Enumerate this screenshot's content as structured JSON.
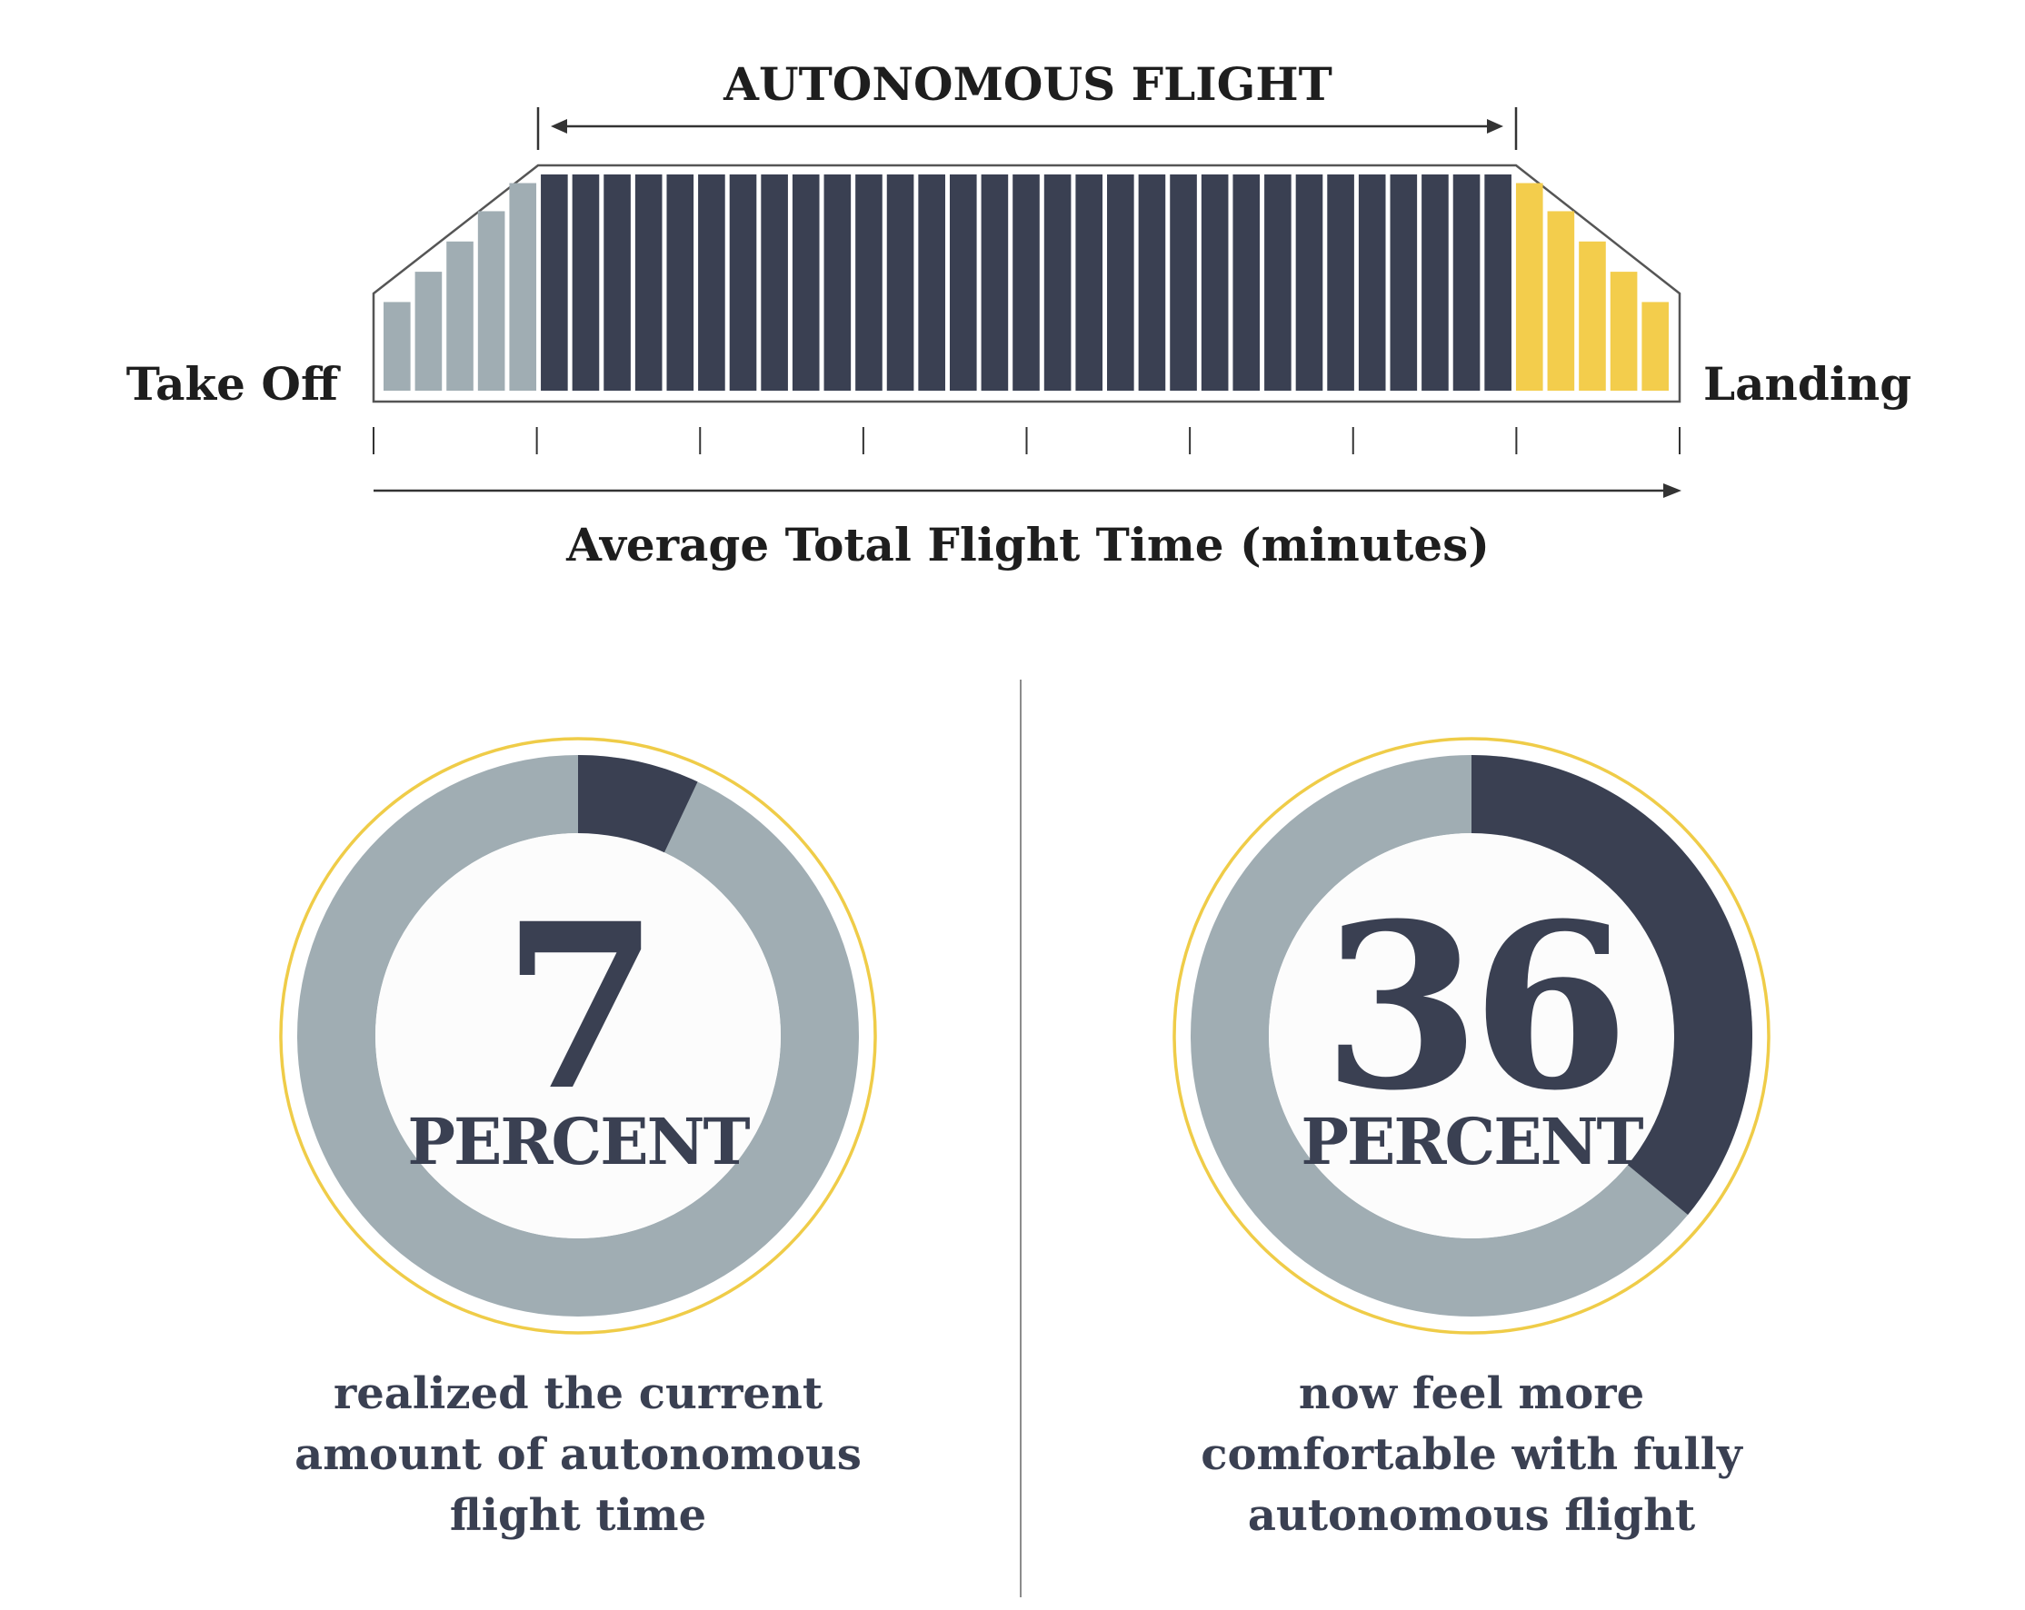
{
  "colors": {
    "dark": "#3a4052",
    "gray": "#a0adb3",
    "yellow": "#f3cd4c",
    "outline": "#555555",
    "divider": "#8c8c8c",
    "ring": "#efcc48",
    "inner_bg": "#fcfcfc"
  },
  "timeline": {
    "title": "AUTONOMOUS FLIGHT",
    "left_label": "Take Off",
    "right_label": "Landing",
    "axis_label": "Average Total Flight Time (minutes)"
  },
  "chart_data": [
    {
      "type": "bar",
      "title": "AUTONOMOUS FLIGHT",
      "xlabel": "Average Total Flight Time (minutes)",
      "ylabel": "",
      "series": [
        {
          "name": "Take Off",
          "color": "#a0adb3",
          "bar_count": 5
        },
        {
          "name": "AUTONOMOUS FLIGHT",
          "color": "#3a4052",
          "bar_count": 31
        },
        {
          "name": "Landing",
          "color": "#f3cd4c",
          "bar_count": 5
        }
      ],
      "takeoff_levels": [
        0.41,
        0.55,
        0.69,
        0.83,
        0.96
      ],
      "landing_levels": [
        0.96,
        0.83,
        0.69,
        0.55,
        0.41
      ],
      "tick_count": 9,
      "grid": false,
      "legend": "none"
    },
    {
      "type": "pie",
      "title": "",
      "values": [
        7,
        93
      ],
      "labels": [
        "",
        ""
      ],
      "colors": [
        "#3a4052",
        "#a0adb3"
      ],
      "value_label": "7",
      "unit_label": "PERCENT",
      "caption_lines": [
        "realized the current",
        "amount of autonomous",
        "flight time"
      ]
    },
    {
      "type": "pie",
      "title": "",
      "values": [
        36,
        64
      ],
      "labels": [
        "",
        ""
      ],
      "colors": [
        "#3a4052",
        "#a0adb3"
      ],
      "value_label": "36",
      "unit_label": "PERCENT",
      "caption_lines": [
        "now feel more",
        "comfortable with fully",
        "autonomous flight"
      ]
    }
  ]
}
